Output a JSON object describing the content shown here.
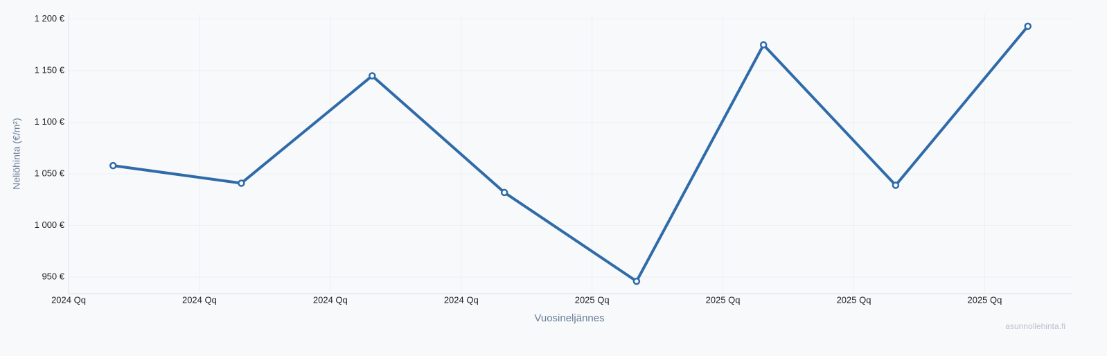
{
  "chart_data": {
    "type": "line",
    "x_label": "Vuosineljännes",
    "y_label": "Neliöhinta (€/m²)",
    "watermark": "asunnollehinta.fi",
    "x": [
      0.34,
      1.32,
      2.32,
      3.33,
      4.34,
      5.31,
      6.32,
      7.33
    ],
    "series": [
      {
        "name": "Neliöhinta",
        "color": "#2f6ba8",
        "values": [
          1058,
          1041,
          1145,
          1032,
          946,
          1175,
          1039,
          1193
        ]
      }
    ],
    "xlim": [
      0,
      7.67
    ],
    "xticks": [
      {
        "value": 0,
        "label": "2024 Qq"
      },
      {
        "value": 1,
        "label": "2024 Qq"
      },
      {
        "value": 2,
        "label": "2024 Qq"
      },
      {
        "value": 3,
        "label": "2024 Qq"
      },
      {
        "value": 4,
        "label": "2025 Qq"
      },
      {
        "value": 5,
        "label": "2025 Qq"
      },
      {
        "value": 6,
        "label": "2025 Qq"
      },
      {
        "value": 7,
        "label": "2025 Qq"
      }
    ],
    "ylim": [
      934,
      1205
    ],
    "yticks": [
      {
        "value": 950,
        "label": "950 €"
      },
      {
        "value": 1000,
        "label": "1 000 €"
      },
      {
        "value": 1050,
        "label": "1 050 €"
      },
      {
        "value": 1100,
        "label": "1 100 €"
      },
      {
        "value": 1150,
        "label": "1 150 €"
      },
      {
        "value": 1200,
        "label": "1 200 €"
      }
    ],
    "grid": true
  }
}
